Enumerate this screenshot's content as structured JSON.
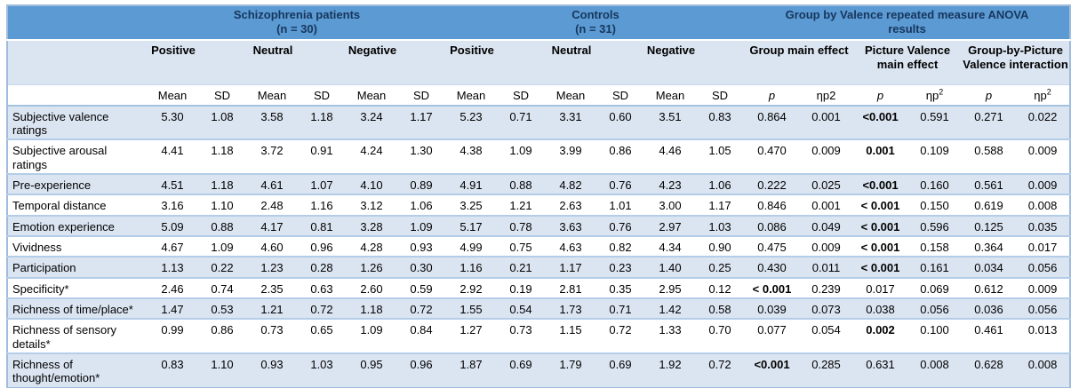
{
  "table": {
    "groups": [
      {
        "title": "Schizophrenia patients",
        "subtitle": "(n = 30)"
      },
      {
        "title": "Controls",
        "subtitle": "(n = 31)"
      },
      {
        "title": "Group by Valence repeated measure ANOVA",
        "subtitle": "results"
      }
    ],
    "valence": [
      "Positive",
      "Neutral",
      "Negative"
    ],
    "anova_effects": [
      "Group main effect",
      "Picture Valence main effect",
      "Group-by-Picture Valence interaction"
    ],
    "mean_label": "Mean",
    "sd_label": "SD",
    "stat_columns": [
      {
        "t": "p",
        "italic": true
      },
      {
        "t": "ηp2"
      },
      {
        "t": "p",
        "italic": true
      },
      {
        "t": "ηp",
        "sup": "2"
      },
      {
        "t": "p",
        "italic": true
      },
      {
        "t": "ηp",
        "sup": "2"
      }
    ],
    "colors": {
      "header_blue": "#5b9ad2",
      "header_text_navy": "#17365d",
      "light_blue_band": "#dbe5f1",
      "separator_blue": "#b3cce8"
    },
    "rows": [
      {
        "label": "Subjective valence ratings",
        "values": [
          "5.30",
          "1.08",
          "3.58",
          "1.18",
          "3.24",
          "1.17",
          "5.23",
          "0.71",
          "3.31",
          "0.60",
          "3.51",
          "0.83"
        ],
        "anova": [
          {
            "v": "0.864"
          },
          {
            "v": "0.001"
          },
          {
            "v": "<0.001",
            "bold": true
          },
          {
            "v": "0.591"
          },
          {
            "v": "0.271"
          },
          {
            "v": "0.022"
          }
        ]
      },
      {
        "label": "Subjective arousal ratings",
        "values": [
          "4.41",
          "1.18",
          "3.72",
          "0.91",
          "4.24",
          "1.30",
          "4.38",
          "1.09",
          "3.99",
          "0.86",
          "4.46",
          "1.05"
        ],
        "anova": [
          {
            "v": "0.470"
          },
          {
            "v": "0.009"
          },
          {
            "v": "0.001",
            "bold": true
          },
          {
            "v": "0.109"
          },
          {
            "v": "0.588"
          },
          {
            "v": "0.009"
          }
        ]
      },
      {
        "label": "Pre-experience",
        "values": [
          "4.51",
          "1.18",
          "4.61",
          "1.07",
          "4.10",
          "0.89",
          "4.91",
          "0.88",
          "4.82",
          "0.76",
          "4.23",
          "1.06"
        ],
        "anova": [
          {
            "v": "0.222"
          },
          {
            "v": "0.025"
          },
          {
            "v": "<0.001",
            "bold": true
          },
          {
            "v": "0.160"
          },
          {
            "v": "0.561"
          },
          {
            "v": "0.009"
          }
        ]
      },
      {
        "label": "Temporal distance",
        "values": [
          "3.16",
          "1.10",
          "2.48",
          "1.16",
          "3.12",
          "1.06",
          "3.25",
          "1.21",
          "2.63",
          "1.01",
          "3.00",
          "1.17"
        ],
        "anova": [
          {
            "v": "0.846"
          },
          {
            "v": "0.001"
          },
          {
            "v": "< 0.001",
            "bold": true
          },
          {
            "v": "0.150"
          },
          {
            "v": "0.619"
          },
          {
            "v": "0.008"
          }
        ]
      },
      {
        "label": "Emotion experience",
        "values": [
          "5.09",
          "0.88",
          "4.17",
          "0.81",
          "3.28",
          "1.09",
          "5.17",
          "0.78",
          "3.63",
          "0.76",
          "2.97",
          "1.03"
        ],
        "anova": [
          {
            "v": "0.086"
          },
          {
            "v": "0.049"
          },
          {
            "v": "< 0.001",
            "bold": true
          },
          {
            "v": "0.596"
          },
          {
            "v": "0.125"
          },
          {
            "v": "0.035"
          }
        ]
      },
      {
        "label": "Vividness",
        "values": [
          "4.67",
          "1.09",
          "4.60",
          "0.96",
          "4.28",
          "0.93",
          "4.99",
          "0.75",
          "4.63",
          "0.82",
          "4.34",
          "0.90"
        ],
        "anova": [
          {
            "v": "0.475"
          },
          {
            "v": "0.009"
          },
          {
            "v": "< 0.001",
            "bold": true
          },
          {
            "v": "0.158"
          },
          {
            "v": "0.364"
          },
          {
            "v": "0.017"
          }
        ]
      },
      {
        "label": "Participation",
        "values": [
          "1.13",
          "0.22",
          "1.23",
          "0.28",
          "1.26",
          "0.30",
          "1.16",
          "0.21",
          "1.17",
          "0.23",
          "1.40",
          "0.25"
        ],
        "anova": [
          {
            "v": "0.430"
          },
          {
            "v": "0.011"
          },
          {
            "v": "< 0.001",
            "bold": true
          },
          {
            "v": "0.161"
          },
          {
            "v": "0.034"
          },
          {
            "v": "0.056"
          }
        ]
      },
      {
        "label": "Specificity*",
        "values": [
          "2.46",
          "0.74",
          "2.35",
          "0.63",
          "2.60",
          "0.59",
          "2.92",
          "0.19",
          "2.81",
          "0.35",
          "2.95",
          "0.12"
        ],
        "anova": [
          {
            "v": "< 0.001",
            "bold": true
          },
          {
            "v": "0.239"
          },
          {
            "v": "0.017"
          },
          {
            "v": "0.069"
          },
          {
            "v": "0.612"
          },
          {
            "v": "0.009"
          }
        ]
      },
      {
        "label": "Richness of time/place*",
        "values": [
          "1.47",
          "0.53",
          "1.21",
          "0.72",
          "1.18",
          "0.72",
          "1.55",
          "0.54",
          "1.73",
          "0.71",
          "1.42",
          "0.58"
        ],
        "anova": [
          {
            "v": "0.039"
          },
          {
            "v": "0.073"
          },
          {
            "v": "0.038"
          },
          {
            "v": "0.056"
          },
          {
            "v": "0.036"
          },
          {
            "v": "0.056"
          }
        ]
      },
      {
        "label": "Richness of sensory details*",
        "values": [
          "0.99",
          "0.86",
          "0.73",
          "0.65",
          "1.09",
          "0.84",
          "1.27",
          "0.73",
          "1.15",
          "0.72",
          "1.33",
          "0.70"
        ],
        "anova": [
          {
            "v": "0.077"
          },
          {
            "v": "0.054"
          },
          {
            "v": "0.002",
            "bold": true
          },
          {
            "v": "0.100"
          },
          {
            "v": "0.461"
          },
          {
            "v": "0.013"
          }
        ]
      },
      {
        "label": "Richness of thought/emotion*",
        "values": [
          "0.83",
          "1.10",
          "0.93",
          "1.03",
          "0.95",
          "0.96",
          "1.87",
          "0.69",
          "1.79",
          "0.69",
          "1.92",
          "0.72"
        ],
        "anova": [
          {
            "v": "<0.001",
            "bold": true
          },
          {
            "v": "0.285"
          },
          {
            "v": "0.631"
          },
          {
            "v": "0.008"
          },
          {
            "v": "0.628"
          },
          {
            "v": "0.008"
          }
        ]
      }
    ]
  }
}
